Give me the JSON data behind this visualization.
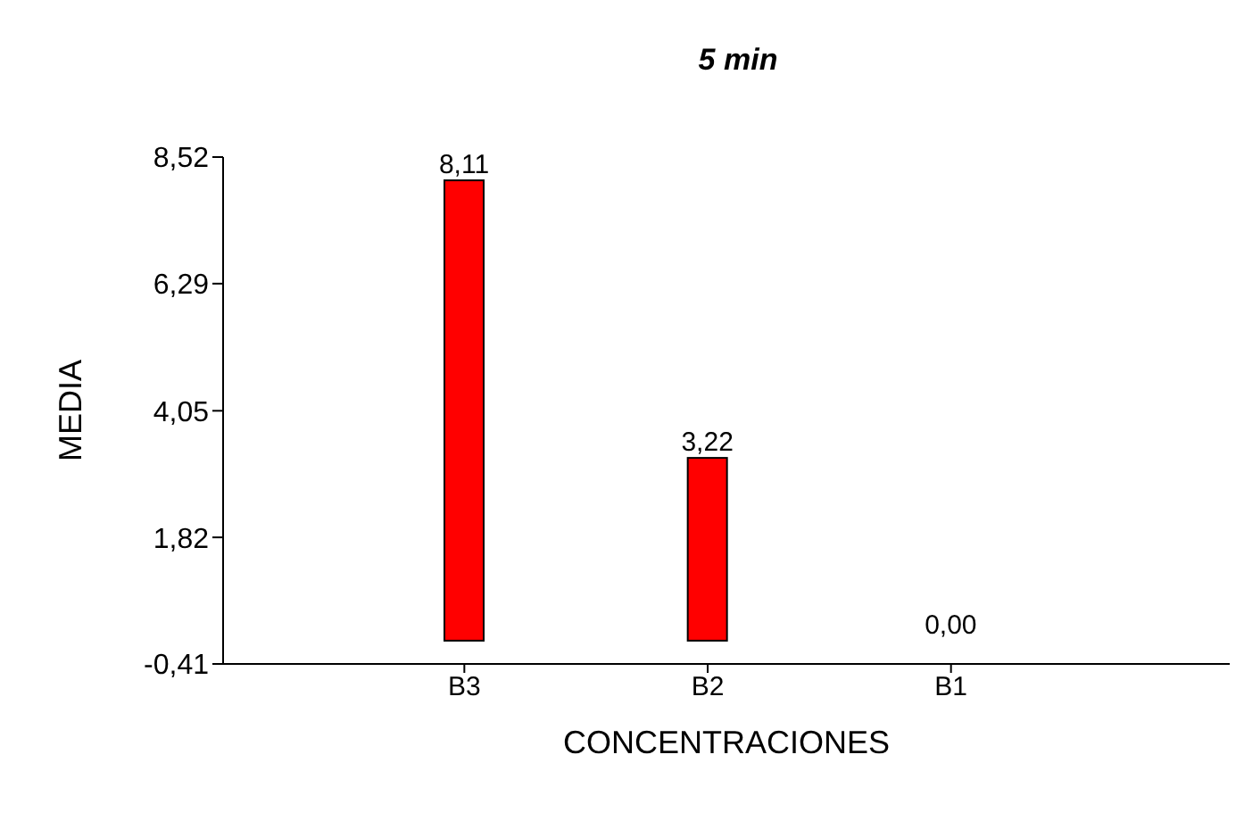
{
  "chart_data": {
    "type": "bar",
    "title": "5 min",
    "xlabel": "CONCENTRACIONES",
    "ylabel": "MEDIA",
    "categories": [
      "B3",
      "B2",
      "B1"
    ],
    "series": [
      {
        "color": "#ff0000",
        "values": [
          8.11,
          3.22,
          0.0
        ],
        "value_labels": [
          "8,11",
          "3,22",
          "0,00"
        ]
      }
    ],
    "ylim": [
      -0.41,
      8.52
    ],
    "yticks": [
      {
        "value": -0.41,
        "label": "-0,41"
      },
      {
        "value": 1.82,
        "label": "1,82"
      },
      {
        "value": 4.05,
        "label": "4,05"
      },
      {
        "value": 6.29,
        "label": "6,29"
      },
      {
        "value": 8.52,
        "label": "8,52"
      }
    ],
    "grid": false,
    "legend": false
  }
}
